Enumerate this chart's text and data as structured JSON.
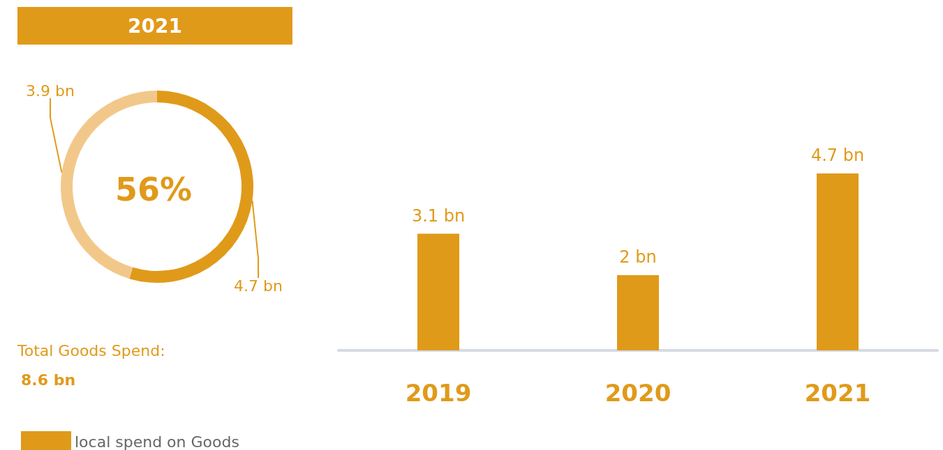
{
  "chart_data": [
    {
      "type": "donut",
      "title": "2021",
      "categories": [
        null,
        null
      ],
      "values": [
        4.7,
        3.9
      ],
      "value_labels": [
        "4.7 bn",
        "3.9 bn"
      ],
      "colors": [
        "#e09a1a",
        "#f2c88a"
      ],
      "annotations": [
        "56%",
        "Total Goods Spend:",
        "8.6 bn"
      ]
    },
    {
      "type": "bar",
      "categories": [
        "2019",
        "2020",
        "2021"
      ],
      "series": [
        {
          "name": "local spend on Goods",
          "color": "#e09a1a",
          "values": [
            3.1,
            2,
            4.7
          ],
          "value_labels": [
            "3.1 bn",
            "2 bn",
            "4.7 bn"
          ]
        }
      ],
      "legend": "bottom left"
    }
  ]
}
